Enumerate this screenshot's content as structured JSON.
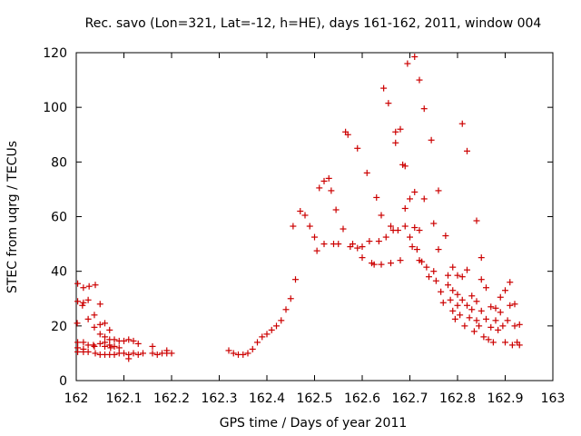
{
  "chart_data": {
    "type": "scatter",
    "title": "Rec. savo (Lon=321, Lat=-12, h=HE), days 161-162, 2011, window 004",
    "xlabel": "GPS time / Days of year 2011",
    "ylabel": "STEC from uqrg / TECUs",
    "xlim": [
      162,
      163
    ],
    "ylim": [
      0,
      120
    ],
    "xticks": [
      "162",
      "162.1",
      "162.2",
      "162.3",
      "162.4",
      "162.5",
      "162.6",
      "162.7",
      "162.8",
      "162.9",
      "163"
    ],
    "yticks": [
      "0",
      "20",
      "40",
      "60",
      "80",
      "100",
      "120"
    ],
    "grid": false,
    "marker": "+",
    "color": "#cc0000",
    "points": [
      [
        162.003,
        35.5
      ],
      [
        162.003,
        29
      ],
      [
        162.002,
        21
      ],
      [
        162.003,
        14
      ],
      [
        162.003,
        12
      ],
      [
        162.003,
        10.5
      ],
      [
        162.015,
        34
      ],
      [
        162.013,
        27.5
      ],
      [
        162.015,
        28.5
      ],
      [
        162.015,
        14
      ],
      [
        162.015,
        11.5
      ],
      [
        162.015,
        10.5
      ],
      [
        162.027,
        34.5
      ],
      [
        162.025,
        29.5
      ],
      [
        162.025,
        22.5
      ],
      [
        162.025,
        13
      ],
      [
        162.025,
        10.5
      ],
      [
        162.04,
        35
      ],
      [
        162.038,
        24
      ],
      [
        162.038,
        19.5
      ],
      [
        162.038,
        12.5
      ],
      [
        162.04,
        10
      ],
      [
        162.036,
        13
      ],
      [
        162.05,
        28
      ],
      [
        162.05,
        20.5
      ],
      [
        162.05,
        17
      ],
      [
        162.05,
        13.5
      ],
      [
        162.05,
        9.5
      ],
      [
        162.06,
        21
      ],
      [
        162.06,
        16
      ],
      [
        162.06,
        14
      ],
      [
        162.06,
        12.5
      ],
      [
        162.06,
        9.5
      ],
      [
        162.07,
        18.5
      ],
      [
        162.07,
        15
      ],
      [
        162.07,
        13
      ],
      [
        162.072,
        12
      ],
      [
        162.07,
        9.5
      ],
      [
        162.08,
        15
      ],
      [
        162.08,
        12.5
      ],
      [
        162.08,
        9.5
      ],
      [
        162.09,
        14.5
      ],
      [
        162.09,
        12
      ],
      [
        162.09,
        10
      ],
      [
        162.1,
        14.5
      ],
      [
        162.1,
        10
      ],
      [
        162.11,
        15
      ],
      [
        162.11,
        8
      ],
      [
        162.11,
        9.5
      ],
      [
        162.12,
        14.5
      ],
      [
        162.12,
        10
      ],
      [
        162.13,
        13.5
      ],
      [
        162.13,
        9.5
      ],
      [
        162.14,
        10
      ],
      [
        162.16,
        12.5
      ],
      [
        162.16,
        10
      ],
      [
        162.17,
        9.5
      ],
      [
        162.18,
        10
      ],
      [
        162.19,
        11
      ],
      [
        162.19,
        10
      ],
      [
        162.2,
        10
      ],
      [
        162.32,
        11
      ],
      [
        162.33,
        10
      ],
      [
        162.34,
        9.5
      ],
      [
        162.35,
        9.5
      ],
      [
        162.36,
        10
      ],
      [
        162.37,
        11.5
      ],
      [
        162.38,
        14
      ],
      [
        162.39,
        16
      ],
      [
        162.4,
        17
      ],
      [
        162.41,
        18.5
      ],
      [
        162.42,
        20
      ],
      [
        162.43,
        22
      ],
      [
        162.44,
        26
      ],
      [
        162.45,
        30
      ],
      [
        162.46,
        37
      ],
      [
        162.455,
        56.5
      ],
      [
        162.47,
        62
      ],
      [
        162.48,
        60.5
      ],
      [
        162.49,
        56.5
      ],
      [
        162.5,
        52.5
      ],
      [
        162.505,
        47.5
      ],
      [
        162.51,
        70.5
      ],
      [
        162.52,
        73
      ],
      [
        162.52,
        50
      ],
      [
        162.53,
        74
      ],
      [
        162.535,
        69.5
      ],
      [
        162.54,
        50
      ],
      [
        162.545,
        62.5
      ],
      [
        162.55,
        50
      ],
      [
        162.56,
        55.5
      ],
      [
        162.565,
        91
      ],
      [
        162.57,
        90
      ],
      [
        162.575,
        49
      ],
      [
        162.58,
        50
      ],
      [
        162.59,
        85
      ],
      [
        162.59,
        48.5
      ],
      [
        162.6,
        49
      ],
      [
        162.6,
        45
      ],
      [
        162.61,
        76
      ],
      [
        162.615,
        51
      ],
      [
        162.62,
        43
      ],
      [
        162.625,
        42.5
      ],
      [
        162.63,
        67
      ],
      [
        162.635,
        51
      ],
      [
        162.64,
        60.5
      ],
      [
        162.64,
        42.5
      ],
      [
        162.645,
        107
      ],
      [
        162.65,
        52.5
      ],
      [
        162.655,
        101.5
      ],
      [
        162.66,
        56.5
      ],
      [
        162.66,
        43
      ],
      [
        162.665,
        55
      ],
      [
        162.67,
        91
      ],
      [
        162.67,
        87
      ],
      [
        162.675,
        55
      ],
      [
        162.68,
        92
      ],
      [
        162.68,
        44
      ],
      [
        162.685,
        79
      ],
      [
        162.69,
        78.5
      ],
      [
        162.69,
        63
      ],
      [
        162.69,
        56.5
      ],
      [
        162.695,
        116
      ],
      [
        162.7,
        66.5
      ],
      [
        162.7,
        52.5
      ],
      [
        162.705,
        49
      ],
      [
        162.71,
        118.5
      ],
      [
        162.71,
        69
      ],
      [
        162.71,
        56
      ],
      [
        162.715,
        48
      ],
      [
        162.72,
        110
      ],
      [
        162.72,
        55
      ],
      [
        162.72,
        44
      ],
      [
        162.725,
        43.5
      ],
      [
        162.73,
        99.5
      ],
      [
        162.73,
        66.5
      ],
      [
        162.735,
        41.5
      ],
      [
        162.74,
        38
      ],
      [
        162.745,
        88
      ],
      [
        162.75,
        57.5
      ],
      [
        162.75,
        40
      ],
      [
        162.755,
        36.5
      ],
      [
        162.76,
        69.5
      ],
      [
        162.76,
        48
      ],
      [
        162.765,
        32.5
      ],
      [
        162.77,
        28.5
      ],
      [
        162.775,
        53
      ],
      [
        162.78,
        38.5
      ],
      [
        162.78,
        35
      ],
      [
        162.785,
        29.5
      ],
      [
        162.79,
        41.5
      ],
      [
        162.79,
        33
      ],
      [
        162.79,
        25.5
      ],
      [
        162.795,
        22.5
      ],
      [
        162.8,
        38.5
      ],
      [
        162.8,
        31.5
      ],
      [
        162.8,
        27.5
      ],
      [
        162.805,
        24
      ],
      [
        162.81,
        94
      ],
      [
        162.81,
        38
      ],
      [
        162.81,
        29.5
      ],
      [
        162.815,
        20
      ],
      [
        162.82,
        84
      ],
      [
        162.82,
        40.5
      ],
      [
        162.82,
        27.5
      ],
      [
        162.825,
        23
      ],
      [
        162.83,
        31
      ],
      [
        162.83,
        26
      ],
      [
        162.835,
        18
      ],
      [
        162.84,
        58.5
      ],
      [
        162.84,
        29
      ],
      [
        162.84,
        22
      ],
      [
        162.845,
        20
      ],
      [
        162.85,
        45
      ],
      [
        162.85,
        37
      ],
      [
        162.85,
        25.5
      ],
      [
        162.855,
        16
      ],
      [
        162.86,
        34
      ],
      [
        162.86,
        22.5
      ],
      [
        162.865,
        15
      ],
      [
        162.87,
        27
      ],
      [
        162.87,
        19.5
      ],
      [
        162.875,
        14
      ],
      [
        162.88,
        26.5
      ],
      [
        162.88,
        22
      ],
      [
        162.885,
        18.5
      ],
      [
        162.89,
        30.5
      ],
      [
        162.89,
        25
      ],
      [
        162.895,
        20
      ],
      [
        162.9,
        33
      ],
      [
        162.9,
        14
      ],
      [
        162.905,
        22
      ],
      [
        162.91,
        36
      ],
      [
        162.91,
        27.5
      ],
      [
        162.915,
        13
      ],
      [
        162.92,
        20
      ],
      [
        162.92,
        28
      ],
      [
        162.925,
        14
      ],
      [
        162.93,
        20.5
      ],
      [
        162.93,
        13
      ]
    ]
  }
}
